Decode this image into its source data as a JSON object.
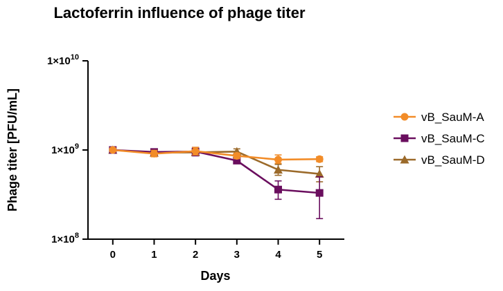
{
  "chart_data": {
    "type": "line",
    "title": "Lactoferrin influence of phage titer",
    "xlabel": "Days",
    "ylabel": "Phage titer [PFU/mL]",
    "x": [
      0,
      1,
      2,
      3,
      4,
      5
    ],
    "x_tick_labels": [
      "0",
      "1",
      "2",
      "3",
      "4",
      "5"
    ],
    "xlim": [
      -0.6,
      5.6
    ],
    "y_scale": "log",
    "ylim": [
      100000000,
      10000000000
    ],
    "y_ticks": [
      {
        "value": 100000000,
        "mantissa": "1×10",
        "exponent": "8"
      },
      {
        "value": 1000000000,
        "mantissa": "1×10",
        "exponent": "9"
      },
      {
        "value": 10000000000,
        "mantissa": "1×10",
        "exponent": "10"
      }
    ],
    "legend_position": "right",
    "series": [
      {
        "name": "vB_SauM-A",
        "color": "#f28c28",
        "marker": "circle",
        "values": [
          1000000000,
          910000000,
          970000000,
          860000000,
          780000000,
          790000000
        ],
        "error_low": [
          960000000,
          840000000,
          880000000,
          800000000,
          710000000,
          740000000
        ],
        "error_high": [
          1050000000,
          990000000,
          1070000000,
          920000000,
          880000000,
          840000000
        ]
      },
      {
        "name": "vB_SauM-C",
        "color": "#6a0e5e",
        "marker": "square",
        "values": [
          1000000000,
          950000000,
          960000000,
          760000000,
          360000000,
          330000000
        ],
        "error_low": [
          960000000,
          900000000,
          860000000,
          710000000,
          280000000,
          170000000
        ],
        "error_high": [
          1040000000,
          1000000000,
          1070000000,
          810000000,
          450000000,
          500000000
        ]
      },
      {
        "name": "vB_SauM-D",
        "color": "#9b6a2a",
        "marker": "triangle",
        "values": [
          1000000000,
          930000000,
          940000000,
          960000000,
          600000000,
          540000000
        ],
        "error_low": [
          960000000,
          880000000,
          880000000,
          880000000,
          520000000,
          440000000
        ],
        "error_high": [
          1040000000,
          980000000,
          1010000000,
          1030000000,
          690000000,
          650000000
        ]
      }
    ]
  }
}
